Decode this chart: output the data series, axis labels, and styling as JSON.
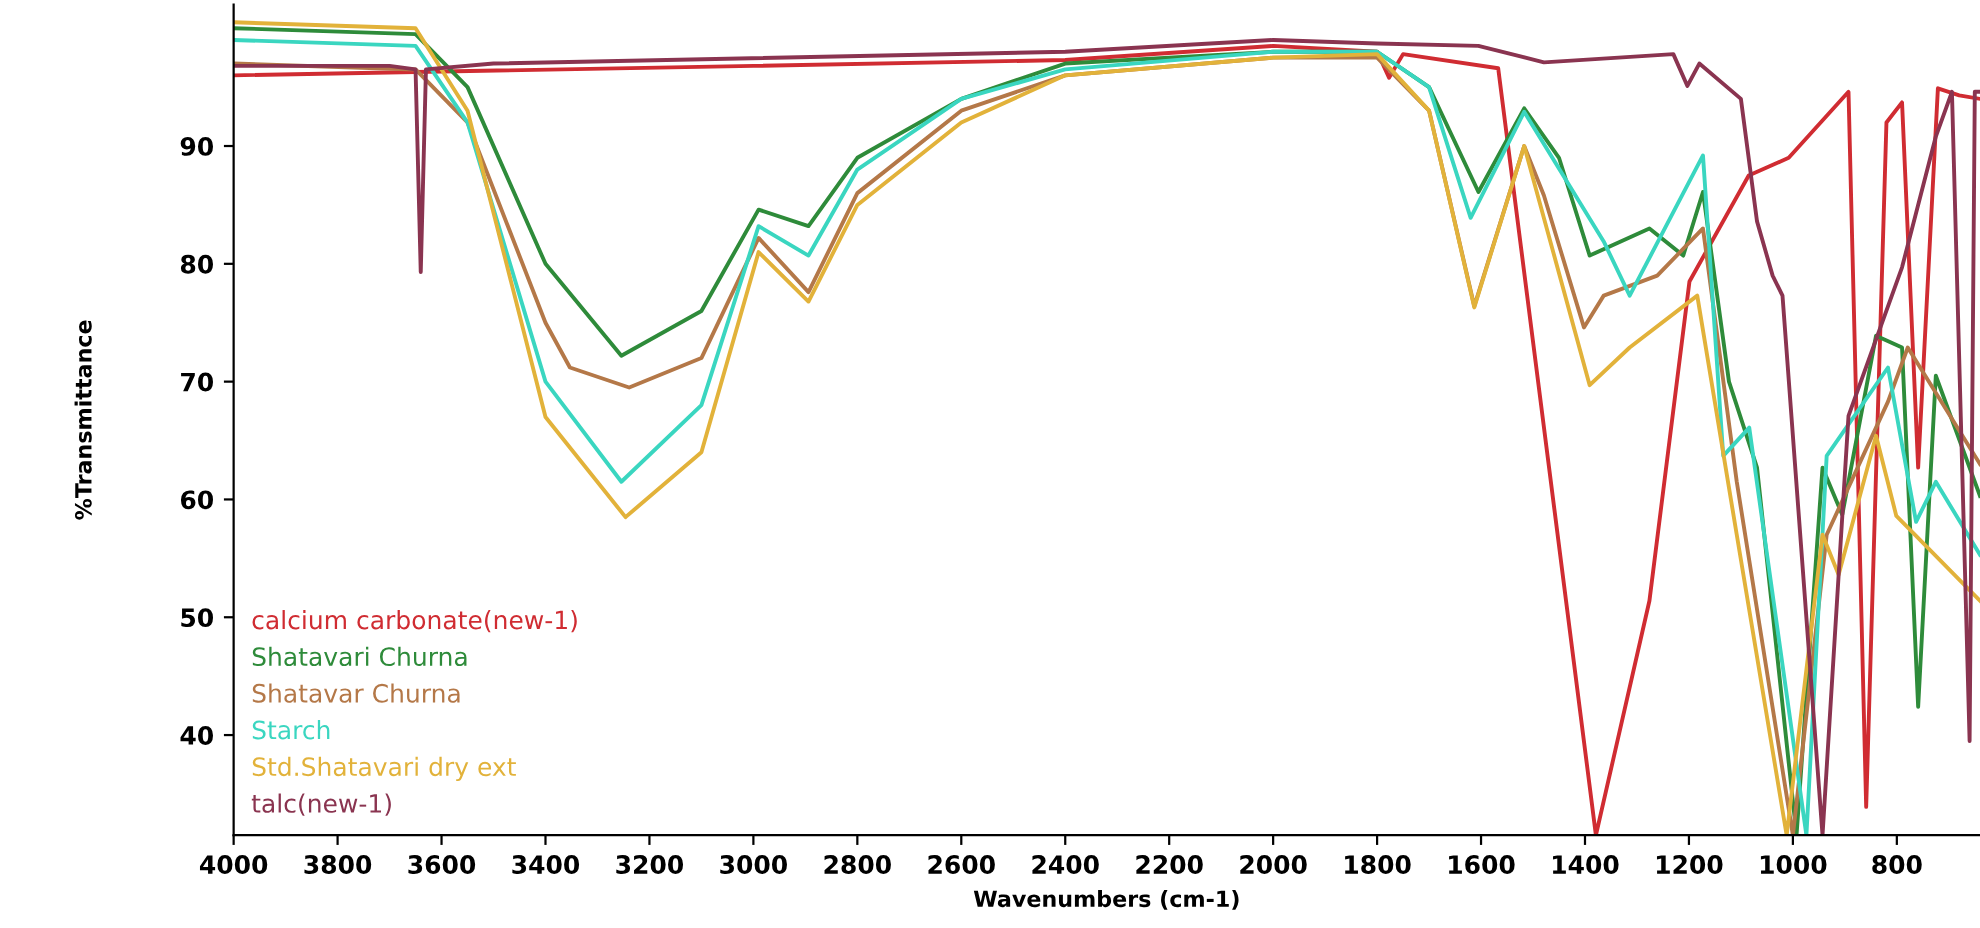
{
  "chart_data": {
    "type": "line",
    "xlabel": "Wavenumbers (cm-1)",
    "ylabel": "%Transmittance",
    "xlim": [
      4000,
      640
    ],
    "ylim": [
      31.5,
      102
    ],
    "xticks": [
      4000,
      3800,
      3600,
      3400,
      3200,
      3000,
      2800,
      2600,
      2400,
      2200,
      2000,
      1800,
      1600,
      1400,
      1200,
      1000,
      800
    ],
    "yticks": [
      40,
      50,
      60,
      70,
      80,
      90
    ],
    "grid": false,
    "legend": "lower left",
    "marker": "none",
    "line_style": "solid",
    "series": [
      {
        "name": "calcium carbonate(new-1)",
        "color": "#d02c32",
        "x": [
          4000,
          3000,
          2400,
          2000,
          1800,
          1777,
          1750,
          1567,
          1379,
          1276,
          1199,
          1085,
          1008,
          893,
          859,
          820,
          790,
          759,
          721,
          680,
          640
        ],
        "values": [
          96,
          96.8,
          97.3,
          98.5,
          98,
          95.8,
          97.8,
          96.6,
          31.5,
          51.4,
          78.5,
          87.5,
          89,
          94.6,
          33.9,
          92,
          93.7,
          62.7,
          94.9,
          94.3,
          94
        ]
      },
      {
        "name": "Shatavari Churna",
        "color": "#2e8b3a",
        "x": [
          4000,
          3650,
          3550,
          3400,
          3254,
          3100,
          2990,
          2894,
          2800,
          2600,
          2400,
          2000,
          1800,
          1700,
          1605,
          1517,
          1450,
          1391,
          1276,
          1211,
          1173,
          1123,
          1069,
          993,
          943,
          905,
          840,
          790,
          759,
          725,
          640
        ],
        "values": [
          100,
          99.5,
          95,
          80,
          72.2,
          76,
          84.6,
          83.2,
          89,
          94,
          97,
          98,
          98,
          95,
          86.1,
          93.2,
          89,
          80.7,
          83,
          80.7,
          86.1,
          70,
          62.7,
          31.5,
          62.7,
          58.7,
          73.9,
          72.9,
          42.4,
          70.5,
          60.3
        ]
      },
      {
        "name": "Shatavar Churna",
        "color": "#b47848",
        "x": [
          4000,
          3650,
          3550,
          3400,
          3353,
          3239,
          3100,
          2990,
          2894,
          2800,
          2600,
          2400,
          2000,
          1800,
          1700,
          1613,
          1517,
          1479,
          1402,
          1364,
          1261,
          1173,
          1108,
          1000,
          935,
          817,
          779,
          640
        ],
        "values": [
          97,
          96.5,
          92,
          75,
          71.2,
          69.5,
          72,
          82.2,
          77.6,
          86,
          93,
          96,
          97.5,
          97.5,
          93,
          76.4,
          90,
          85.8,
          74.6,
          77.3,
          79,
          83,
          61.5,
          31.5,
          57,
          68.3,
          72.9,
          63
        ]
      },
      {
        "name": "Starch",
        "color": "#3ad6c0",
        "x": [
          4000,
          3650,
          3550,
          3400,
          3254,
          3100,
          2990,
          2894,
          2800,
          2600,
          2400,
          2000,
          1800,
          1700,
          1620,
          1517,
          1364,
          1314,
          1173,
          1134,
          1084,
          974,
          935,
          817,
          763,
          725,
          640
        ],
        "values": [
          99,
          98.5,
          92,
          70,
          61.5,
          68,
          83.2,
          80.7,
          88,
          94,
          96.5,
          98,
          98,
          95,
          83.9,
          92.9,
          81.9,
          77.3,
          89.2,
          63.7,
          66.1,
          31.5,
          63.7,
          71.2,
          58.1,
          61.5,
          55.3
        ]
      },
      {
        "name": "Std.Shatavari dry ext",
        "color": "#e2b23a",
        "x": [
          4000,
          3650,
          3550,
          3400,
          3246,
          3100,
          2990,
          2894,
          2800,
          2600,
          2400,
          2000,
          1800,
          1700,
          1613,
          1517,
          1391,
          1314,
          1184,
          1108,
          1012,
          943,
          912,
          840,
          801,
          640
        ],
        "values": [
          100.5,
          100,
          93,
          67,
          58.5,
          64,
          81,
          76.8,
          85,
          92,
          96,
          97.5,
          97.8,
          93,
          76.3,
          90,
          69.7,
          72.9,
          77.3,
          57,
          31.5,
          57,
          53.6,
          65.4,
          58.6,
          51.4
        ]
      },
      {
        "name": "talc(new-1)",
        "color": "#8a3450",
        "x": [
          4000,
          3700,
          3650,
          3640,
          3630,
          3500,
          2400,
          2000,
          1800,
          1605,
          1479,
          1230,
          1203,
          1180,
          1100,
          1069,
          1039,
          1020,
          943,
          893,
          790,
          725,
          694,
          660,
          650,
          640
        ],
        "values": [
          96.8,
          96.8,
          96.5,
          79.3,
          96.5,
          97,
          98,
          99,
          98.7,
          98.5,
          97.1,
          97.8,
          95.1,
          97,
          94,
          83.6,
          79,
          77.3,
          31.5,
          67.1,
          79.7,
          90.8,
          94.6,
          39.5,
          94.6,
          94.6
        ]
      }
    ]
  }
}
